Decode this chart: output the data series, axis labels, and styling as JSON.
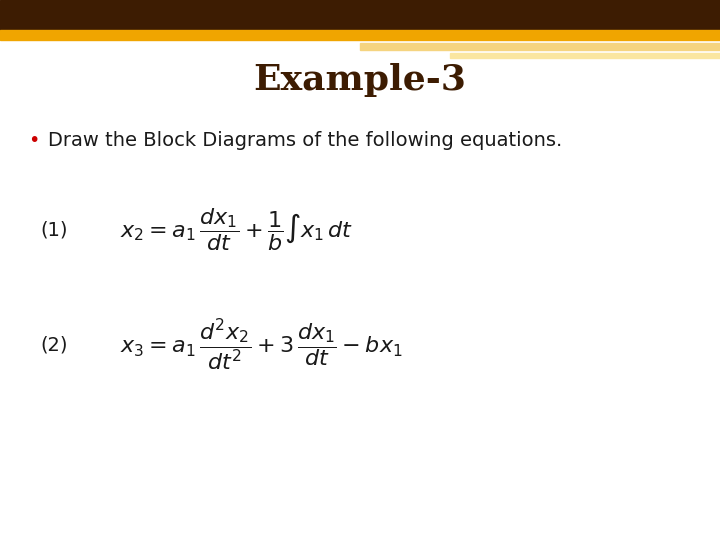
{
  "title": "Example-3",
  "title_color": "#3d1c02",
  "title_fontsize": 26,
  "header_bar_color": "#3d1c02",
  "gold_bar_color": "#f0a500",
  "light_gold_color": "#f5d480",
  "bullet_color": "#cc0000",
  "bullet_text": "Draw the Block Diagrams of the following equations.",
  "bullet_fontsize": 14,
  "text_color": "#1a1a1a",
  "label_fontsize": 14,
  "eq_fontsize": 16,
  "background_color": "#ffffff"
}
